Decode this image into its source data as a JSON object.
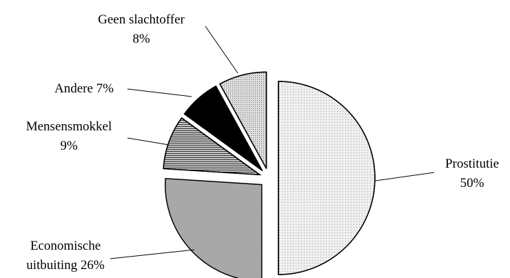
{
  "chart_data": {
    "type": "pie",
    "categories": [
      "Prostitutie",
      "Economische uitbuiting",
      "Mensensmokkel",
      "Andere",
      "Geen slachtoffer"
    ],
    "values": [
      50,
      26,
      9,
      7,
      8
    ],
    "value_labels": [
      "50%",
      "26%",
      "9%",
      "7%",
      "8%"
    ],
    "colors": [
      "#efefef",
      "#a8a8a8",
      "#c4c4c4",
      "#000000",
      "#dedede"
    ]
  }
}
